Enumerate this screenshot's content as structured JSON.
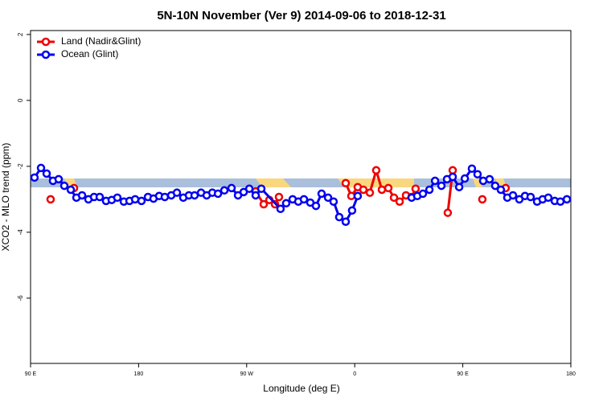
{
  "chart_data": {
    "type": "line",
    "title": "5N-10N November (Ver 9)   2014-09-06 to 2018-12-31",
    "x_label": "Longitude (deg E)",
    "y_label": "XCO2 - MLO trend (ppm)",
    "xlim": [
      90,
      540
    ],
    "xticks": [
      {
        "value": 90,
        "label": "90 E"
      },
      {
        "value": 180,
        "label": "180"
      },
      {
        "value": 270,
        "label": "90 W"
      },
      {
        "value": 360,
        "label": "0"
      },
      {
        "value": 450,
        "label": "90 E"
      },
      {
        "value": 540,
        "label": "180"
      }
    ],
    "ylim": [
      -7.98,
      2.12
    ],
    "yticks": [
      2,
      0,
      -2,
      -4,
      -6
    ],
    "legend": "top-left",
    "series": [
      {
        "name": "Land (Nadir&Glint)",
        "color": "#ee0000",
        "x": [
          106.7,
          null,
          126.2,
          null,
          277.5,
          284.2,
          288.9,
          293.6,
          296.9,
          null,
          352.5,
          357.2,
          362.5,
          367.2,
          372.6,
          377.9,
          382.6,
          388.0,
          392.7,
          397.4,
          402.7,
          407.4,
          410.7,
          null,
          437.5,
          441.6,
          null,
          466.3,
          null,
          485.7
        ],
        "values": [
          -3.0,
          null,
          -2.66,
          null,
          -2.76,
          -3.15,
          -3.02,
          -3.15,
          -2.93,
          null,
          -2.51,
          -2.9,
          -2.63,
          -2.71,
          -2.8,
          -2.12,
          -2.71,
          -2.66,
          -2.95,
          -3.07,
          -2.88,
          -2.93,
          -2.68,
          null,
          -3.41,
          -2.12,
          null,
          -3.0,
          null,
          -2.66
        ]
      },
      {
        "name": "Ocean (Glint)",
        "color": "#0000ee",
        "x": [
          93.3,
          98.7,
          103.4,
          108.7,
          113.4,
          118.1,
          123.5,
          128.2,
          132.9,
          138.2,
          142.9,
          147.6,
          152.9,
          157.6,
          162.3,
          167.7,
          172.4,
          177.1,
          182.4,
          187.8,
          192.4,
          197.1,
          201.8,
          207.2,
          211.9,
          217.2,
          221.9,
          226.6,
          232.0,
          236.7,
          241.4,
          246.1,
          251.4,
          257.4,
          262.8,
          267.5,
          272.2,
          277.5,
          282.2,
          298.2,
          302.9,
          308.3,
          313.0,
          317.7,
          323.0,
          327.7,
          332.4,
          337.8,
          342.4,
          347.1,
          352.5,
          357.8,
          362.5,
          null,
          407.4,
          412.1,
          416.8,
          422.2,
          426.9,
          432.2,
          436.9,
          441.6,
          447.0,
          451.7,
          457.6,
          462.3,
          467.0,
          472.3,
          477.0,
          481.7,
          487.1,
          491.8,
          497.1,
          501.8,
          506.5,
          511.9,
          516.5,
          521.2,
          526.6,
          531.3,
          536.7
        ],
        "values": [
          -2.34,
          -2.05,
          -2.22,
          -2.44,
          -2.39,
          -2.59,
          -2.71,
          -2.95,
          -2.88,
          -3.0,
          -2.93,
          -2.93,
          -3.05,
          -3.02,
          -2.95,
          -3.07,
          -3.05,
          -3.0,
          -3.05,
          -2.93,
          -2.98,
          -2.9,
          -2.93,
          -2.88,
          -2.8,
          -2.95,
          -2.88,
          -2.88,
          -2.8,
          -2.88,
          -2.8,
          -2.83,
          -2.73,
          -2.66,
          -2.88,
          -2.78,
          -2.68,
          -2.88,
          -2.68,
          -3.29,
          -3.12,
          -3.0,
          -3.07,
          -3.0,
          -3.1,
          -3.2,
          -2.83,
          -2.95,
          -3.07,
          -3.54,
          -3.68,
          -3.34,
          -2.9,
          null,
          -2.95,
          -2.9,
          -2.83,
          -2.71,
          -2.44,
          -2.59,
          -2.39,
          -2.32,
          -2.63,
          -2.37,
          -2.07,
          -2.24,
          -2.44,
          -2.39,
          -2.59,
          -2.71,
          -2.95,
          -2.88,
          -3.0,
          -2.9,
          -2.93,
          -3.07,
          -3.0,
          -2.95,
          -3.05,
          -3.07,
          -3.0
        ]
      }
    ]
  }
}
